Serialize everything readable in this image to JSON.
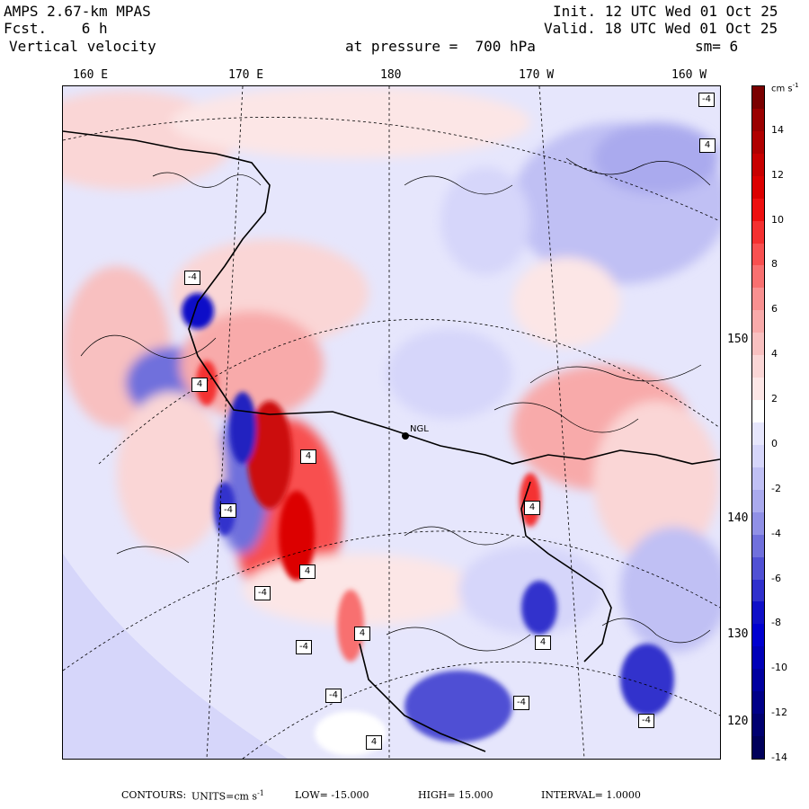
{
  "header": {
    "model": "AMPS 2.67-km MPAS",
    "fcst_label": "Fcst.",
    "fcst_value": "6 h",
    "variable": "Vertical velocity",
    "pressure_label": "at pressure =",
    "pressure_value": "700 hPa",
    "init": "Init. 12 UTC Wed 01 Oct 25",
    "valid": "Valid. 18 UTC Wed 01 Oct 25",
    "smoothing": "sm= 6"
  },
  "longitude_labels": [
    "160 E",
    "170 E",
    "180",
    "170 W",
    "160 W"
  ],
  "latitude_labels": [
    "150 W",
    "140 W",
    "130 W",
    "120 W"
  ],
  "colorbar": {
    "units_label": "cm s",
    "units_exp": "-1",
    "ticks": [
      "14",
      "12",
      "10",
      "8",
      "6",
      "4",
      "2",
      "0",
      "-2",
      "-4",
      "-6",
      "-8",
      "-10",
      "-12",
      "-14"
    ],
    "colors": [
      "#7a0000",
      "#9a0000",
      "#b00000",
      "#c80000",
      "#dc0000",
      "#ee1010",
      "#f43030",
      "#f85050",
      "#f87070",
      "#f89090",
      "#f8aaaa",
      "#f8c0c0",
      "#fad6d6",
      "#fce6e6",
      "#ffffff",
      "#e6e6fc",
      "#d6d6fa",
      "#c0c0f4",
      "#aaaaee",
      "#9090e6",
      "#7070dc",
      "#5050d4",
      "#3030cc",
      "#1010c8",
      "#0000d0",
      "#0000b8",
      "#0000a0",
      "#000088",
      "#000070",
      "#00005a"
    ]
  },
  "map": {
    "station_label": "NGL",
    "contour_boxes": [
      "-4",
      "4",
      "-4",
      "4",
      "4",
      "4",
      "4",
      "-4",
      "-4",
      "4",
      "4",
      "-4",
      "-4",
      "-4",
      "-4",
      "4"
    ]
  },
  "footer": {
    "contours_label": "CONTOURS:",
    "units_label": "UNITS=cm s",
    "units_exp": "-1",
    "low": "LOW= -15.000",
    "high": "HIGH= 15.000",
    "interval": "INTERVAL= 1.0000"
  }
}
